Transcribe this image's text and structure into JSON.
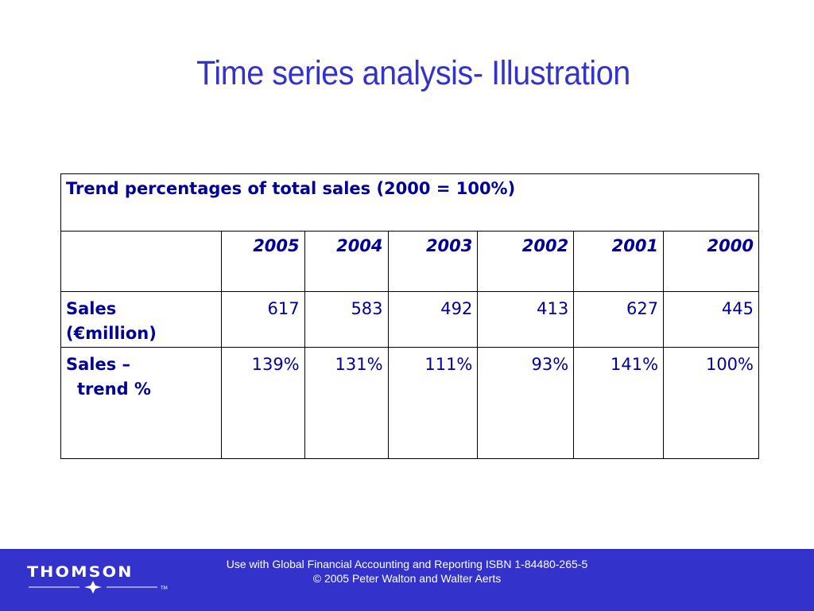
{
  "slide": {
    "title": "Time series analysis- Illustration"
  },
  "table": {
    "caption": "Trend  percentages of total sales (2000 = 100%)",
    "years": [
      "2005",
      "2004",
      "2003",
      "2002",
      "2001",
      "2000"
    ],
    "rows": [
      {
        "label_line1": "Sales",
        "label_line2": "(€million)",
        "values": [
          "617",
          "583",
          "492",
          "413",
          "627",
          "445"
        ]
      },
      {
        "label_line1": "Sales –",
        "label_line2": "trend %",
        "values": [
          "139%",
          "131%",
          "111%",
          "93%",
          "141%",
          "100%"
        ]
      }
    ]
  },
  "footer": {
    "logo_text": "THOMSON",
    "logo_tm": "TM",
    "line1": "Use with Global Financial Accounting and Reporting ISBN 1-84480-265-5",
    "line2": "© 2005 Peter Walton and Walter Aerts"
  },
  "colors": {
    "title": "#3333cc",
    "table_text": "#000099",
    "footer_bg": "#3333cc",
    "footer_text": "#ffffff"
  },
  "icons": {
    "logo_star": "four-point-star-icon"
  }
}
